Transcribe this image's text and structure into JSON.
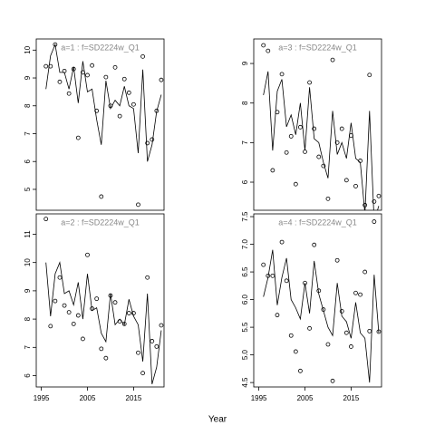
{
  "xlabel": "Year",
  "chart_data": [
    {
      "type": "scatter-line",
      "title": "a=1  :  f=SD2224w_Q1",
      "x": [
        1996,
        1997,
        1998,
        1999,
        2000,
        2001,
        2002,
        2003,
        2004,
        2005,
        2006,
        2007,
        2008,
        2009,
        2010,
        2011,
        2012,
        2013,
        2014,
        2015,
        2016,
        2017,
        2018,
        2019,
        2020,
        2021
      ],
      "series": [
        {
          "type": "scatter",
          "color": "#000000",
          "values": [
            9.42,
            9.42,
            10.2,
            8.86,
            9.25,
            8.44,
            9.32,
            6.85,
            9.2,
            9.1,
            9.45,
            7.82,
            4.74,
            9.03,
            8.0,
            9.38,
            7.63,
            8.96,
            8.47,
            8.05,
            4.45,
            9.77,
            6.66,
            6.79,
            7.82,
            8.93
          ]
        },
        {
          "type": "line",
          "color": "#000000",
          "values": [
            8.6,
            9.8,
            10.2,
            9.2,
            9.2,
            8.6,
            9.4,
            8.1,
            9.6,
            8.5,
            8.6,
            7.5,
            6.6,
            8.9,
            7.9,
            8.2,
            8.0,
            8.7,
            8.0,
            7.9,
            6.3,
            9.3,
            6.0,
            6.6,
            7.8,
            8.4
          ]
        }
      ],
      "xlim": [
        1993.9,
        2021.6
      ],
      "ylim": [
        4.25,
        10.4
      ],
      "yticks": [
        5,
        6,
        7,
        8,
        9,
        10
      ]
    },
    {
      "type": "scatter-line",
      "title": "a=3  :  f=SD2224w_Q1",
      "x": [
        1996,
        1997,
        1998,
        1999,
        2000,
        2001,
        2002,
        2003,
        2004,
        2005,
        2006,
        2007,
        2008,
        2009,
        2010,
        2011,
        2012,
        2013,
        2014,
        2015,
        2016,
        2017,
        2018,
        2019,
        2020,
        2021
      ],
      "series": [
        {
          "type": "scatter",
          "color": "#000000",
          "values": [
            9.46,
            9.32,
            6.3,
            7.77,
            8.73,
            6.75,
            7.16,
            5.95,
            7.39,
            6.77,
            8.52,
            7.35,
            6.64,
            6.41,
            5.58,
            9.09,
            7.0,
            7.35,
            6.05,
            7.18,
            5.9,
            6.54,
            5.42,
            8.71,
            5.51,
            5.65
          ]
        },
        {
          "type": "line",
          "color": "#000000",
          "values": [
            8.2,
            8.8,
            6.8,
            8.3,
            8.6,
            7.4,
            7.7,
            7.2,
            8.0,
            6.8,
            8.4,
            7.1,
            7.0,
            6.5,
            6.1,
            7.8,
            6.7,
            7.0,
            6.6,
            7.5,
            6.6,
            6.5,
            5.2,
            7.8,
            5.0,
            5.4
          ]
        }
      ],
      "xlim": [
        1993.9,
        2021.6
      ],
      "ylim": [
        5.29,
        9.62
      ],
      "yticks": [
        6,
        7,
        8,
        9
      ]
    },
    {
      "type": "scatter-line",
      "title": "a=2  :  f=SD2224w_Q1",
      "x": [
        1996,
        1997,
        1998,
        1999,
        2000,
        2001,
        2002,
        2003,
        2004,
        2005,
        2006,
        2007,
        2008,
        2009,
        2010,
        2011,
        2012,
        2013,
        2014,
        2015,
        2016,
        2017,
        2018,
        2019,
        2020,
        2021
      ],
      "series": [
        {
          "type": "scatter",
          "color": "#000000",
          "values": [
            11.54,
            7.75,
            8.64,
            9.47,
            8.48,
            8.24,
            7.83,
            8.13,
            7.3,
            10.27,
            8.37,
            8.72,
            6.95,
            6.62,
            8.83,
            8.59,
            7.92,
            7.83,
            8.21,
            8.21,
            6.81,
            6.09,
            9.47,
            7.22,
            7.03,
            7.78
          ]
        },
        {
          "type": "line",
          "color": "#000000",
          "values": [
            10.0,
            8.1,
            9.6,
            10.0,
            8.9,
            9.0,
            8.5,
            9.3,
            8.0,
            9.6,
            8.3,
            8.4,
            7.5,
            7.2,
            8.9,
            7.8,
            8.0,
            7.8,
            8.7,
            8.1,
            7.8,
            6.5,
            8.9,
            5.7,
            6.3,
            7.6
          ]
        }
      ],
      "xlim": [
        1993.9,
        2021.6
      ],
      "ylim": [
        5.6,
        11.72
      ],
      "yticks": [
        6,
        7,
        8,
        9,
        10,
        11
      ],
      "xticks": [
        1995,
        2005,
        2015
      ]
    },
    {
      "type": "scatter-line",
      "title": "a=4  :  f=SD2224w_Q1",
      "x": [
        1996,
        1997,
        1998,
        1999,
        2000,
        2001,
        2002,
        2003,
        2004,
        2005,
        2006,
        2007,
        2008,
        2009,
        2010,
        2011,
        2012,
        2013,
        2014,
        2015,
        2016,
        2017,
        2018,
        2019,
        2020,
        2021
      ],
      "series": [
        {
          "type": "scatter",
          "color": "#000000",
          "values": [
            6.63,
            6.43,
            6.43,
            5.72,
            7.04,
            6.34,
            5.35,
            5.06,
            4.71,
            6.3,
            5.48,
            6.99,
            6.16,
            5.82,
            5.19,
            4.53,
            6.71,
            5.79,
            5.4,
            5.15,
            6.12,
            6.09,
            6.5,
            5.43,
            7.41,
            5.42
          ]
        },
        {
          "type": "line",
          "color": "#000000",
          "values": [
            6.05,
            6.4,
            6.9,
            5.9,
            6.4,
            6.75,
            6.0,
            5.85,
            5.65,
            6.3,
            5.75,
            6.7,
            6.1,
            5.8,
            5.5,
            5.35,
            6.3,
            5.7,
            5.6,
            5.3,
            5.95,
            5.4,
            5.3,
            4.5,
            6.45,
            5.4
          ]
        }
      ],
      "xlim": [
        1993.9,
        2021.6
      ],
      "ylim": [
        4.42,
        7.55
      ],
      "yticks": [
        4.5,
        {
          "value": 5,
          "label": "5.0"
        },
        5.5,
        {
          "value": 6,
          "label": "6.0"
        },
        6.5,
        {
          "value": 7,
          "label": "7.0"
        },
        7.5
      ],
      "xticks": [
        1995,
        2005,
        2015
      ]
    }
  ]
}
